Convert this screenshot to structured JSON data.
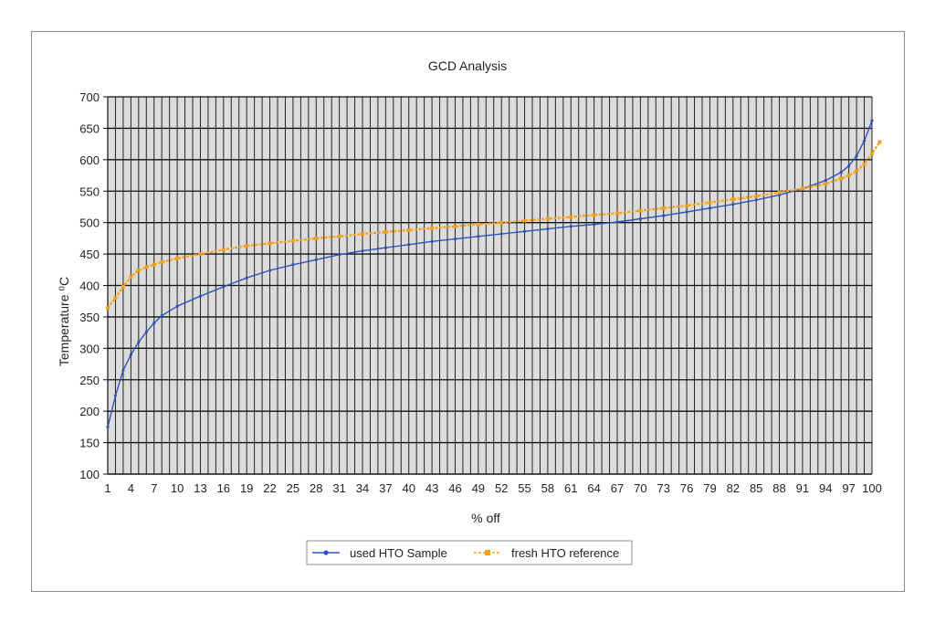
{
  "chart_data": {
    "type": "line",
    "title": "GCD Analysis",
    "xlabel": "% off",
    "ylabel": "Temperature ⁰C",
    "xlim": [
      1,
      100
    ],
    "ylim": [
      100,
      700
    ],
    "y_ticks": [
      100,
      150,
      200,
      250,
      300,
      350,
      400,
      450,
      500,
      550,
      600,
      650,
      700
    ],
    "x_tick_labels": [
      "1",
      "4",
      "7",
      "10",
      "13",
      "16",
      "19",
      "22",
      "25",
      "28",
      "31",
      "34",
      "37",
      "40",
      "43",
      "46",
      "49",
      "52",
      "55",
      "58",
      "61",
      "64",
      "67",
      "70",
      "73",
      "76",
      "79",
      "82",
      "85",
      "88",
      "91",
      "94",
      "97",
      "100"
    ],
    "grid": true,
    "legend_position": "bottom",
    "series": [
      {
        "name": "used HTO Sample",
        "color": "#2e54b8",
        "points": [
          [
            1,
            175
          ],
          [
            2,
            225
          ],
          [
            3,
            265
          ],
          [
            4,
            290
          ],
          [
            5,
            310
          ],
          [
            6,
            326
          ],
          [
            7,
            340
          ],
          [
            8,
            352
          ],
          [
            10,
            367
          ],
          [
            13,
            383
          ],
          [
            16,
            398
          ],
          [
            19,
            412
          ],
          [
            22,
            424
          ],
          [
            25,
            433
          ],
          [
            28,
            441
          ],
          [
            31,
            449
          ],
          [
            34,
            455
          ],
          [
            37,
            460
          ],
          [
            40,
            465
          ],
          [
            43,
            470
          ],
          [
            46,
            474
          ],
          [
            49,
            478
          ],
          [
            52,
            482
          ],
          [
            55,
            486
          ],
          [
            58,
            490
          ],
          [
            61,
            494
          ],
          [
            64,
            497
          ],
          [
            67,
            501
          ],
          [
            70,
            506
          ],
          [
            73,
            511
          ],
          [
            76,
            517
          ],
          [
            79,
            523
          ],
          [
            82,
            529
          ],
          [
            85,
            536
          ],
          [
            88,
            544
          ],
          [
            91,
            554
          ],
          [
            94,
            567
          ],
          [
            96,
            580
          ],
          [
            97,
            590
          ],
          [
            98,
            606
          ],
          [
            99,
            630
          ],
          [
            100,
            662
          ]
        ]
      },
      {
        "name": "fresh HTO reference",
        "color": "#f5a01a",
        "points": [
          [
            1,
            364
          ],
          [
            2,
            380
          ],
          [
            3,
            398
          ],
          [
            4,
            414
          ],
          [
            5,
            424
          ],
          [
            6,
            429
          ],
          [
            7,
            433
          ],
          [
            8,
            437
          ],
          [
            10,
            443
          ],
          [
            13,
            450
          ],
          [
            16,
            457
          ],
          [
            19,
            463
          ],
          [
            22,
            467
          ],
          [
            25,
            471
          ],
          [
            28,
            475
          ],
          [
            31,
            478
          ],
          [
            34,
            482
          ],
          [
            37,
            485
          ],
          [
            40,
            488
          ],
          [
            43,
            491
          ],
          [
            46,
            494
          ],
          [
            49,
            497
          ],
          [
            52,
            500
          ],
          [
            55,
            503
          ],
          [
            58,
            506
          ],
          [
            61,
            509
          ],
          [
            64,
            512
          ],
          [
            67,
            515
          ],
          [
            70,
            519
          ],
          [
            73,
            523
          ],
          [
            76,
            527
          ],
          [
            79,
            532
          ],
          [
            82,
            537
          ],
          [
            85,
            542
          ],
          [
            88,
            548
          ],
          [
            91,
            554
          ],
          [
            94,
            562
          ],
          [
            96,
            570
          ],
          [
            97,
            575
          ],
          [
            98,
            582
          ],
          [
            99,
            593
          ],
          [
            100,
            610
          ],
          [
            101,
            628
          ]
        ]
      }
    ]
  }
}
